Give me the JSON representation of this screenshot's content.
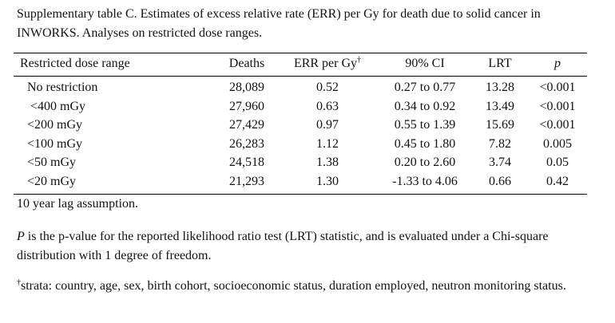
{
  "caption": "Supplementary table C. Estimates of excess relative rate (ERR) per Gy for death due to solid cancer in INWORKS.  Analyses on restricted dose ranges.",
  "table": {
    "headers": {
      "dose_range": "Restricted dose range",
      "deaths": "Deaths",
      "err": "ERR per Gy",
      "err_mark": "†",
      "ci": "90% CI",
      "lrt": "LRT",
      "p": "p"
    },
    "rows": [
      {
        "dose_range": "No restriction",
        "deaths": "28,089",
        "err": "0.52",
        "ci": "0.27 to 0.77",
        "lrt": "13.28",
        "p": "<0.001"
      },
      {
        "dose_range": "<400 mGy",
        "deaths": "27,960",
        "err": "0.63",
        "ci": "0.34 to 0.92",
        "lrt": "13.49",
        "p": "<0.001"
      },
      {
        "dose_range": "<200 mGy",
        "deaths": "27,429",
        "err": "0.97",
        "ci": "0.55 to 1.39",
        "lrt": "15.69",
        "p": "<0.001"
      },
      {
        "dose_range": "<100 mGy",
        "deaths": "26,283",
        "err": "1.12",
        "ci": "0.45 to 1.80",
        "lrt": "7.82",
        "p": "0.005"
      },
      {
        "dose_range": "<50 mGy",
        "deaths": "24,518",
        "err": "1.38",
        "ci": "0.20 to 2.60",
        "lrt": "3.74",
        "p": "0.05"
      },
      {
        "dose_range": "<20 mGy",
        "deaths": "21,293",
        "err": "1.30",
        "ci": "-1.33 to 4.06",
        "lrt": "0.66",
        "p": "0.42"
      }
    ]
  },
  "notes": {
    "lag": "10 year lag assumption.",
    "p_symbol": "P",
    "p_text": " is the p-value for the reported likelihood ratio test (LRT) statistic, and is evaluated under a Chi-square distribution with 1 degree of freedom.",
    "strata_mark": "†",
    "strata_text": "strata: country, age, sex, birth cohort, socioeconomic status, duration employed, neutron monitoring status."
  }
}
